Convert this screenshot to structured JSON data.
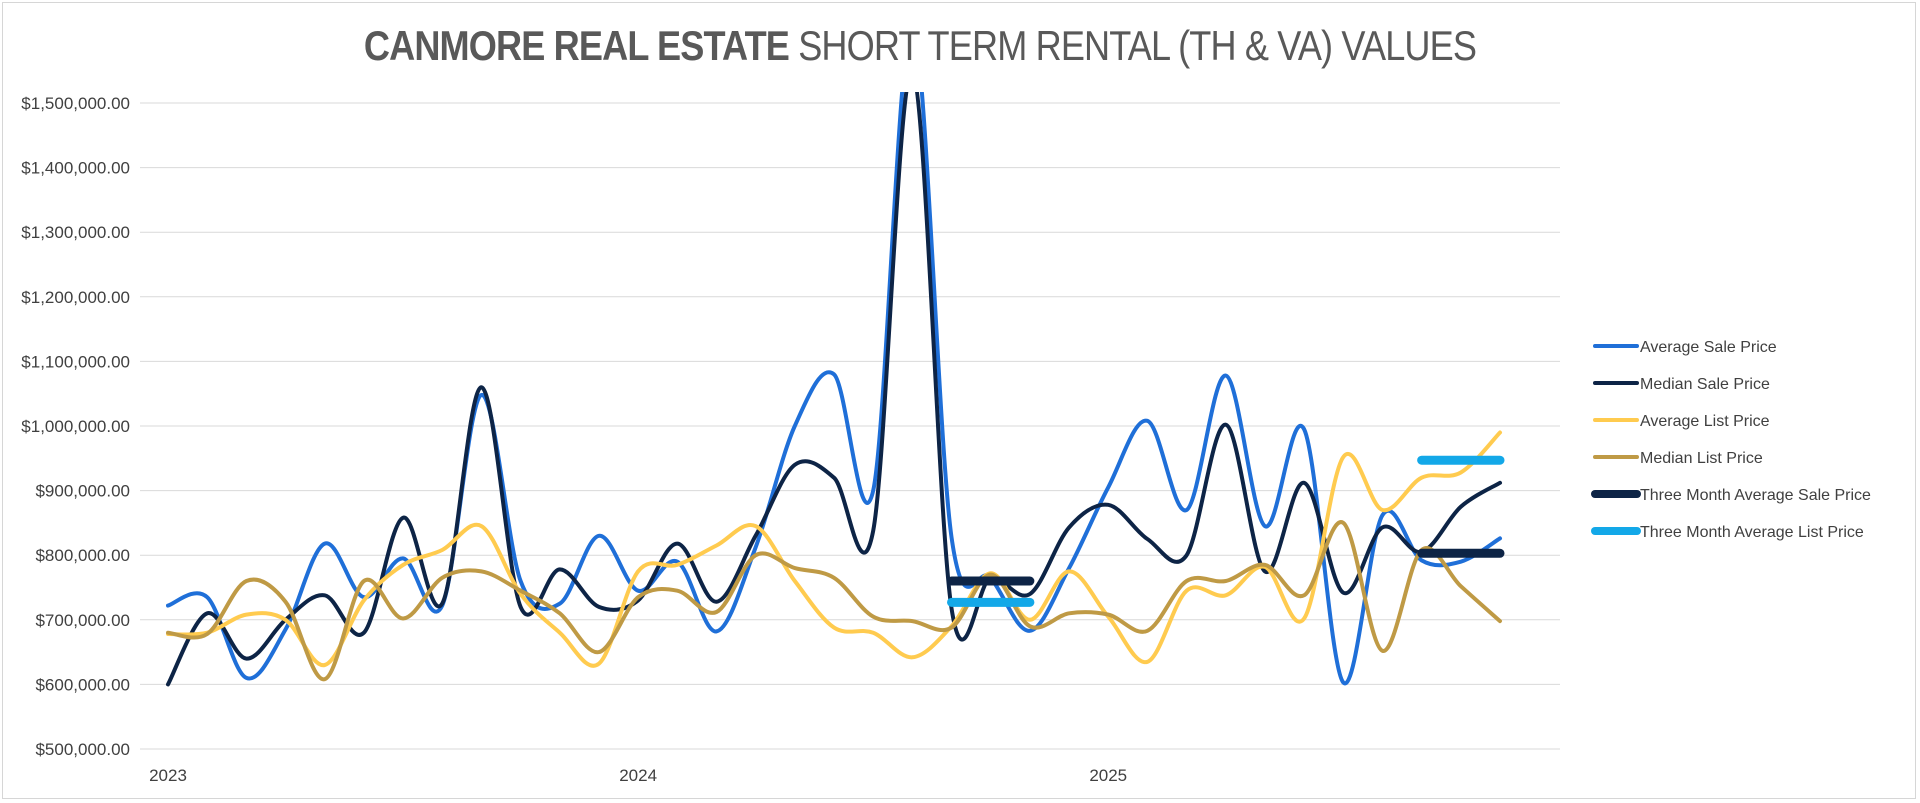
{
  "title_bold": "CANMORE REAL ESTATE",
  "title_rest": " SHORT TERM RENTAL (TH & VA) VALUES",
  "chart_data": {
    "type": "line",
    "title": "CANMORE REAL ESTATE SHORT TERM RENTAL (TH & VA) VALUES",
    "xlabel": "",
    "ylabel": "",
    "ylim": [
      500000,
      1500000
    ],
    "y_ticks": [
      "$500,000.00",
      "$600,000.00",
      "$700,000.00",
      "$800,000.00",
      "$900,000.00",
      "$1,000,000.00",
      "$1,100,000.00",
      "$1,200,000.00",
      "$1,300,000.00",
      "$1,400,000.00",
      "$1,500,000.00"
    ],
    "y_tick_values": [
      500000,
      600000,
      700000,
      800000,
      900000,
      1000000,
      1100000,
      1200000,
      1300000,
      1400000,
      1500000
    ],
    "x_tick_labels": [
      {
        "label": "2023",
        "index": 0
      },
      {
        "label": "2024",
        "index": 12
      },
      {
        "label": "2025",
        "index": 24
      }
    ],
    "grid": true,
    "legend_position": "right",
    "x_count": 35,
    "series": [
      {
        "name": "Average Sale Price",
        "color": "#1f6fd8",
        "width": 4,
        "values": [
          722000,
          735000,
          610000,
          685000,
          818000,
          735000,
          795000,
          722000,
          1048000,
          760000,
          725000,
          830000,
          745000,
          790000,
          682000,
          812000,
          1000000,
          1080000,
          900000,
          1620000,
          828000,
          765000,
          683000,
          780000,
          905000,
          1008000,
          870000,
          1078000,
          845000,
          995000,
          603000,
          862000,
          792000,
          790000,
          826000
        ]
      },
      {
        "name": "Median Sale Price",
        "color": "#0d2446",
        "width": 4,
        "values": [
          600000,
          710000,
          640000,
          700000,
          738000,
          680000,
          858000,
          725000,
          1060000,
          720000,
          778000,
          720000,
          730000,
          818000,
          728000,
          830000,
          940000,
          920000,
          838000,
          1550000,
          718000,
          765000,
          740000,
          843000,
          878000,
          825000,
          800000,
          1002000,
          775000,
          912000,
          742000,
          843000,
          805000,
          875000,
          912000
        ]
      },
      {
        "name": "Average List Price",
        "color": "#ffcb4f",
        "width": 4,
        "values": [
          678000,
          680000,
          708000,
          700000,
          630000,
          730000,
          785000,
          808000,
          845000,
          740000,
          680000,
          632000,
          775000,
          785000,
          815000,
          845000,
          760000,
          688000,
          680000,
          642000,
          690000,
          772000,
          700000,
          775000,
          705000,
          635000,
          745000,
          738000,
          782000,
          702000,
          952000,
          870000,
          920000,
          928000,
          990000
        ]
      },
      {
        "name": "Median List Price",
        "color": "#bf9a45",
        "width": 4,
        "values": [
          680000,
          678000,
          760000,
          728000,
          608000,
          760000,
          702000,
          765000,
          775000,
          745000,
          710000,
          650000,
          735000,
          745000,
          712000,
          800000,
          780000,
          765000,
          705000,
          698000,
          688000,
          770000,
          690000,
          710000,
          708000,
          683000,
          760000,
          760000,
          785000,
          738000,
          850000,
          652000,
          808000,
          752000,
          698000
        ]
      },
      {
        "name": "Three Month Average Sale Price",
        "color": "#0d2446",
        "width": 9,
        "segments": [
          {
            "start": 20,
            "end": 22,
            "value": 760000
          },
          {
            "start": 32,
            "end": 34,
            "value": 803000
          }
        ]
      },
      {
        "name": "Three Month Average List Price",
        "color": "#13a8e8",
        "width": 9,
        "segments": [
          {
            "start": 20,
            "end": 22,
            "value": 727000
          },
          {
            "start": 32,
            "end": 34,
            "value": 947000
          }
        ]
      }
    ]
  }
}
